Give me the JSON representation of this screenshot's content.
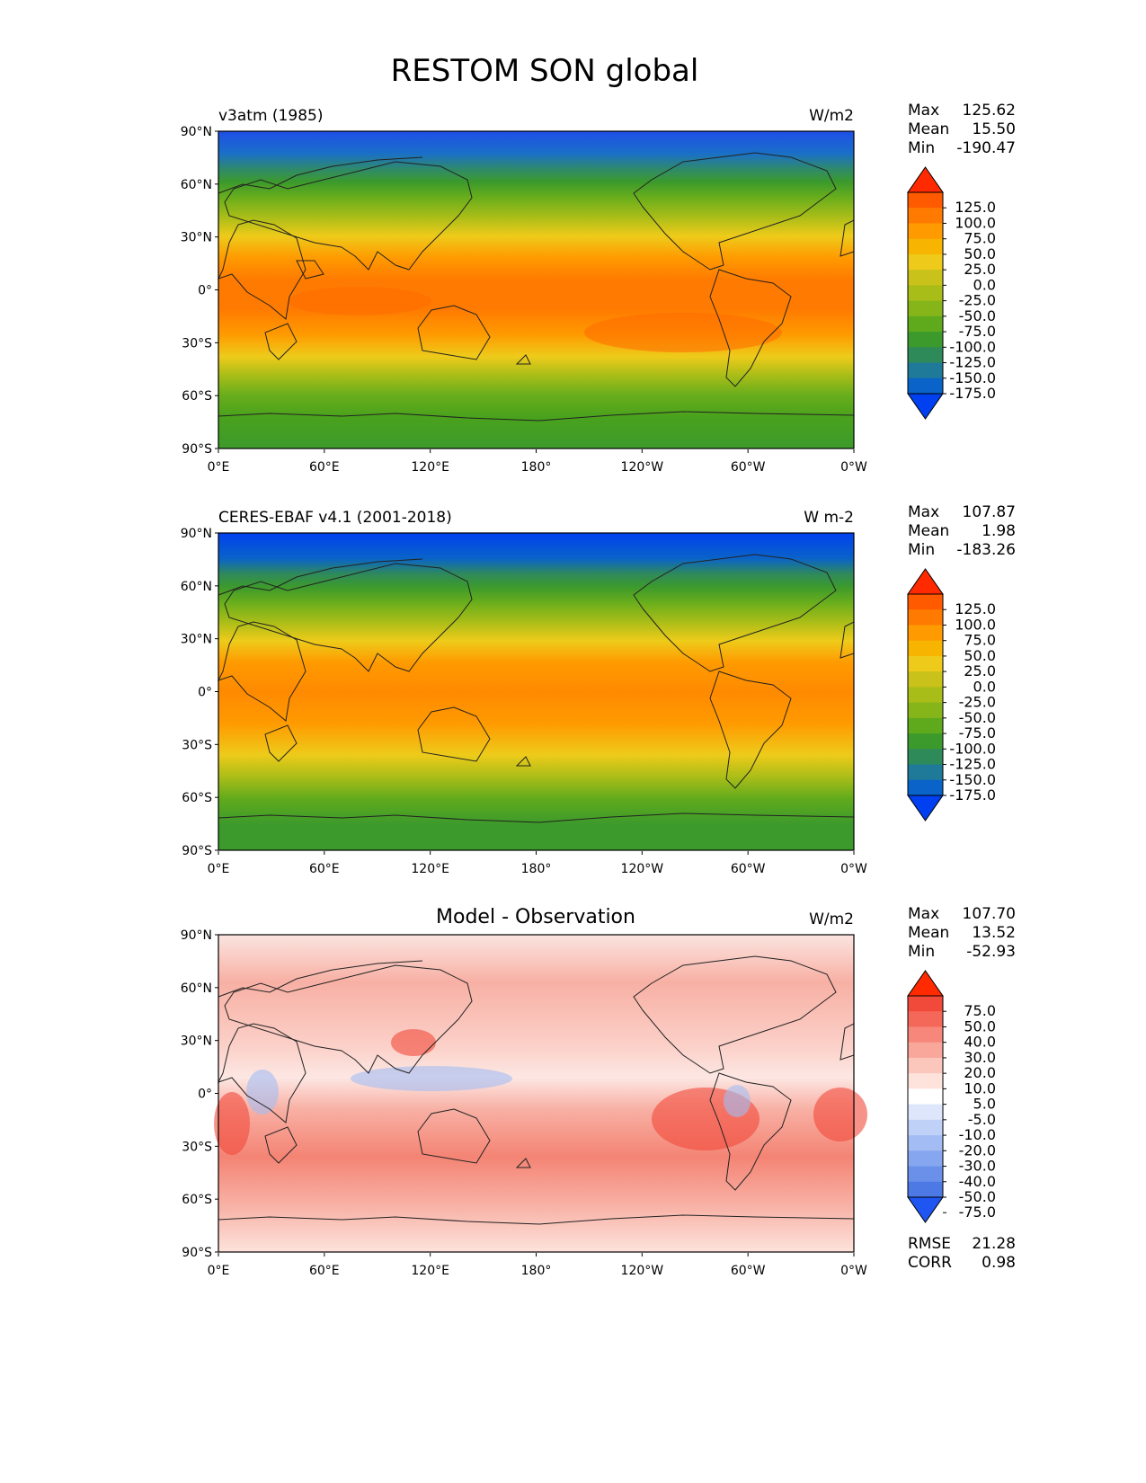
{
  "title": "RESTOM SON global",
  "lat_ticks": [
    "90°N",
    "60°N",
    "30°N",
    "0°",
    "30°S",
    "60°S",
    "90°S"
  ],
  "lon_ticks": [
    "0°E",
    "60°E",
    "120°E",
    "180°",
    "120°W",
    "60°W",
    "0°W"
  ],
  "panels": [
    {
      "left_label": "v3atm (1985)",
      "center_label": "",
      "units": "W/m2",
      "stats": [
        {
          "label": "Max",
          "value": "125.62"
        },
        {
          "label": "Mean",
          "value": "15.50"
        },
        {
          "label": "Min",
          "value": "-190.47"
        }
      ],
      "colorbar_labels": [
        "125.0",
        "100.0",
        "75.0",
        "50.0",
        "25.0",
        "0.0",
        "-25.0",
        "-50.0",
        "-75.0",
        "-100.0",
        "-125.0",
        "-150.0",
        "-175.0"
      ],
      "colormap": "field"
    },
    {
      "left_label": "CERES-EBAF v4.1 (2001-2018)",
      "center_label": "",
      "units": "W m-2",
      "stats": [
        {
          "label": "Max",
          "value": "107.87"
        },
        {
          "label": "Mean",
          "value": "1.98"
        },
        {
          "label": "Min",
          "value": "-183.26"
        }
      ],
      "colorbar_labels": [
        "125.0",
        "100.0",
        "75.0",
        "50.0",
        "25.0",
        "0.0",
        "-25.0",
        "-50.0",
        "-75.0",
        "-100.0",
        "-125.0",
        "-150.0",
        "-175.0"
      ],
      "colormap": "field"
    },
    {
      "left_label": "",
      "center_label": "Model - Observation",
      "units": "W/m2",
      "stats": [
        {
          "label": "Max",
          "value": "107.70"
        },
        {
          "label": "Mean",
          "value": "13.52"
        },
        {
          "label": "Min",
          "value": "-52.93"
        }
      ],
      "colorbar_labels": [
        "75.0",
        "50.0",
        "40.0",
        "30.0",
        "20.0",
        "10.0",
        "5.0",
        "-5.0",
        "-10.0",
        "-20.0",
        "-30.0",
        "-40.0",
        "-50.0",
        "-75.0"
      ],
      "colormap": "diff",
      "rmse": {
        "label": "RMSE",
        "value": "21.28"
      },
      "corr": {
        "label": "CORR",
        "value": "0.98"
      }
    }
  ],
  "colors": {
    "field_ramp": [
      "#ff2a00",
      "#ff5a00",
      "#ff7a00",
      "#ff9a00",
      "#f7b400",
      "#eecb1a",
      "#c9c21a",
      "#a9bd18",
      "#86b51a",
      "#5faa1c",
      "#3c9a2c",
      "#2f8a5a",
      "#1f7a9a",
      "#0a63c8",
      "#0040f0"
    ],
    "diff_ramp": [
      "#ff2a00",
      "#f24a3a",
      "#f4685a",
      "#f6877a",
      "#f8a79a",
      "#fbc7bd",
      "#fde3dc",
      "#ffffff",
      "#dde6fb",
      "#c0d1f7",
      "#a3bcf3",
      "#86a6ef",
      "#6a90ea",
      "#4d79e4",
      "#1f55f0"
    ]
  }
}
